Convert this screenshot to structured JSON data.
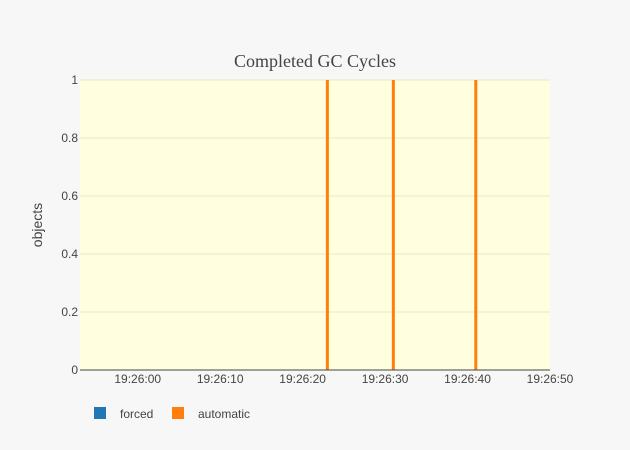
{
  "chart_data": {
    "type": "bar",
    "title": "Completed GC Cycles",
    "xlabel": "",
    "ylabel": "objects",
    "x_ticks": [
      "19:26:00",
      "19:26:10",
      "19:26:20",
      "19:26:30",
      "19:26:40",
      "19:26:50"
    ],
    "xlim": [
      "19:25:53",
      "19:26:50"
    ],
    "ylim": [
      0,
      1
    ],
    "y_ticks": [
      "0",
      "0.2",
      "0.4",
      "0.6",
      "0.8",
      "1"
    ],
    "grid": true,
    "legend_position": "bottom-left",
    "plot_background": "#ffffe0",
    "series": [
      {
        "name": "forced",
        "color": "#1f77b4",
        "points": []
      },
      {
        "name": "automatic",
        "color": "#ff7f0e",
        "points": [
          {
            "x": "19:26:23",
            "y": 1
          },
          {
            "x": "19:26:31",
            "y": 1
          },
          {
            "x": "19:26:41",
            "y": 1
          }
        ]
      }
    ]
  }
}
